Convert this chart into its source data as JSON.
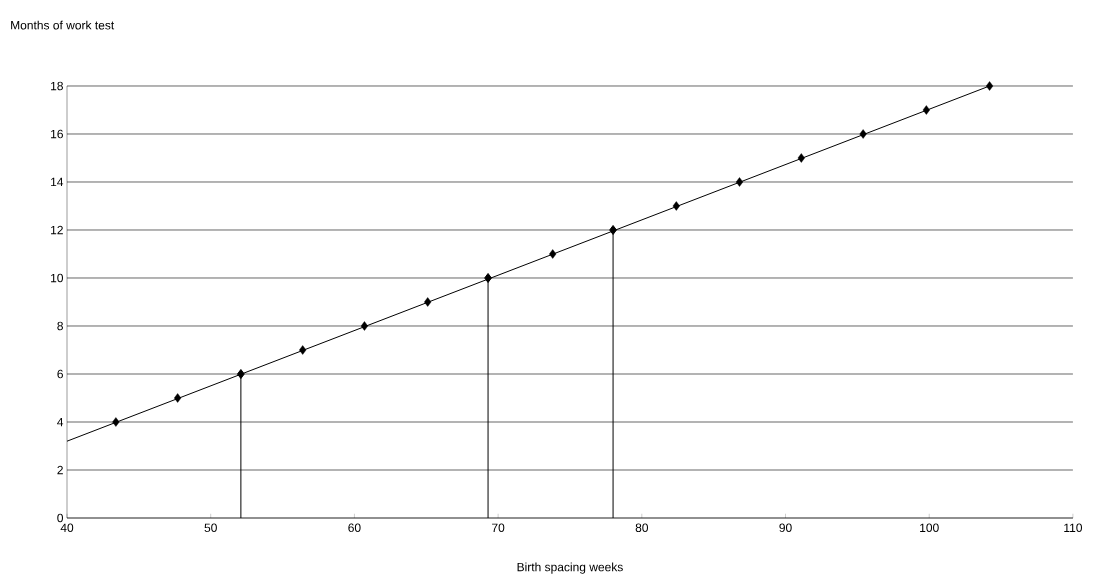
{
  "chart_data": {
    "type": "scatter",
    "xlabel": "Birth spacing weeks",
    "ylabel": "Months of work test",
    "series": [
      {
        "type": "line",
        "color": "#000000",
        "marker": "none",
        "x": [
          40,
          104.2
        ],
        "values": [
          3.2,
          18
        ]
      },
      {
        "type": "lollipop",
        "color": "#000000",
        "marker": "diamond",
        "x": [
          52.1,
          69.3,
          78.0
        ],
        "values": [
          6,
          10,
          12
        ]
      },
      {
        "color": "#000000",
        "marker": "diamond",
        "x": [
          43.4,
          47.7,
          56.4,
          60.7,
          65.1,
          73.8,
          82.4,
          86.8,
          91.1,
          95.4,
          99.8,
          104.2
        ],
        "values": [
          4,
          5,
          7,
          8,
          9,
          11,
          13,
          14,
          15,
          16,
          17,
          18
        ]
      }
    ],
    "xlim": [
      40,
      110
    ],
    "xticks": [
      40,
      50,
      60,
      70,
      80,
      90,
      100,
      110
    ],
    "ylim": [
      0,
      18
    ],
    "yticks": [
      0,
      2,
      4,
      6,
      8,
      10,
      12,
      14,
      16,
      18
    ],
    "grid": "y"
  }
}
